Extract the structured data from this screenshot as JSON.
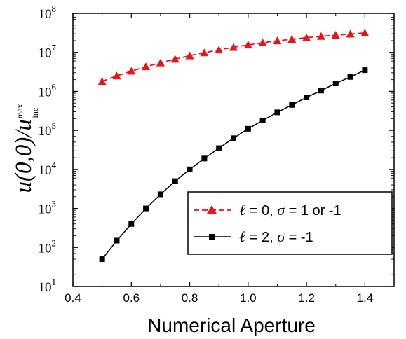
{
  "chart_data": {
    "type": "line",
    "x_axis": {
      "label": "Numerical Aperture",
      "ticks": [
        "0.4",
        "0.6",
        "0.8",
        "1.0",
        "1.2",
        "1.4"
      ],
      "range": [
        0.4,
        1.5
      ]
    },
    "y_axis": {
      "label_main": "u(0,0)/u",
      "label_sub": "inc",
      "label_sup": "max",
      "scale": "log",
      "ticks": [
        {
          "base": "10",
          "exp": "1"
        },
        {
          "base": "10",
          "exp": "2"
        },
        {
          "base": "10",
          "exp": "3"
        },
        {
          "base": "10",
          "exp": "4"
        },
        {
          "base": "10",
          "exp": "5"
        },
        {
          "base": "10",
          "exp": "6"
        },
        {
          "base": "10",
          "exp": "7"
        },
        {
          "base": "10",
          "exp": "8"
        }
      ],
      "range": [
        10,
        100000000
      ]
    },
    "series": [
      {
        "name": "ℓ = 0,  σ = 1 or -1",
        "legend_symbol": "ℓ",
        "legend_mid": " = 0,  ",
        "legend_sigma": "σ",
        "legend_tail": " = 1 or -1",
        "color": "#e8141c",
        "marker": "triangle",
        "dashed": true,
        "x": [
          0.5,
          0.55,
          0.6,
          0.65,
          0.7,
          0.75,
          0.8,
          0.85,
          0.9,
          0.95,
          1.0,
          1.05,
          1.1,
          1.15,
          1.2,
          1.25,
          1.3,
          1.35,
          1.4
        ],
        "y": [
          1800000,
          2500000,
          3300000,
          4300000,
          5400000,
          6700000,
          8200000,
          9800000,
          11600000,
          13500000,
          15500000,
          17600000,
          19800000,
          21700000,
          23800000,
          25800000,
          27700000,
          29500000,
          31500000
        ]
      },
      {
        "name": "ℓ = 2,  σ = -1",
        "legend_symbol": "ℓ",
        "legend_mid": " = 2,  ",
        "legend_sigma": "σ",
        "legend_tail": " = -1",
        "color": "#000000",
        "marker": "square",
        "dashed": false,
        "x": [
          0.5,
          0.55,
          0.6,
          0.65,
          0.7,
          0.75,
          0.8,
          0.85,
          0.9,
          0.95,
          1.0,
          1.05,
          1.1,
          1.15,
          1.2,
          1.25,
          1.3,
          1.35,
          1.4
        ],
        "y": [
          50,
          150,
          400,
          1000,
          2300,
          5000,
          10000,
          19000,
          35000,
          63000,
          110000,
          180000,
          290000,
          450000,
          700000,
          1050000,
          1600000,
          2350000,
          3500000
        ]
      }
    ],
    "legend_position": "lower-right",
    "grid": false
  }
}
